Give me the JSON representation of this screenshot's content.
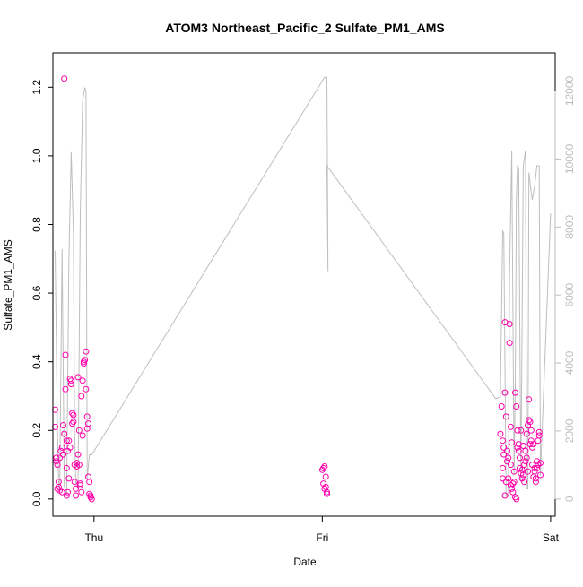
{
  "chart_data": {
    "type": "scatter",
    "title": "ATOM3 Northeast_Pacific_2 Sulfate_PM1_AMS",
    "xlabel": "Date",
    "ylabel": "Sulfate_PM1_AMS",
    "x_ticks": [
      "Thu",
      "Fri",
      "Sat"
    ],
    "xlim": [
      -0.18,
      2.02
    ],
    "ylim": [
      -0.05,
      1.3
    ],
    "y_ticks": [
      "0.0",
      "0.2",
      "0.4",
      "0.6",
      "0.8",
      "1.0",
      "1.2"
    ],
    "y_tick_values": [
      0.0,
      0.2,
      0.4,
      0.6,
      0.8,
      1.0,
      1.2
    ],
    "y2_ticks": [
      "0",
      "2000",
      "4000",
      "6000",
      "8000",
      "10000",
      "12000"
    ],
    "y2_tick_values": [
      0,
      2000,
      4000,
      6000,
      8000,
      10000,
      12000
    ],
    "y2lim": [
      -505,
      13120
    ],
    "grid": false,
    "legend": "none",
    "series": [
      {
        "kind": "points",
        "color": "#ff00aa",
        "points": [
          [
            -0.17,
            0.21
          ],
          [
            -0.17,
            0.26
          ],
          [
            -0.165,
            0.11
          ],
          [
            -0.165,
            0.12
          ],
          [
            -0.16,
            0.1
          ],
          [
            -0.16,
            0.03
          ],
          [
            -0.155,
            0.05
          ],
          [
            -0.155,
            0.035
          ],
          [
            -0.15,
            0.025
          ],
          [
            -0.15,
            0.12
          ],
          [
            -0.145,
            0.14
          ],
          [
            -0.14,
            0.15
          ],
          [
            -0.14,
            0.02
          ],
          [
            -0.135,
            0.215
          ],
          [
            -0.135,
            0.13
          ],
          [
            -0.13,
            1.225
          ],
          [
            -0.13,
            0.19
          ],
          [
            -0.125,
            0.42
          ],
          [
            -0.125,
            0.32
          ],
          [
            -0.12,
            0.17
          ],
          [
            -0.12,
            0.01
          ],
          [
            -0.12,
            0.09
          ],
          [
            -0.115,
            0.14
          ],
          [
            -0.115,
            0.02
          ],
          [
            -0.11,
            0.17
          ],
          [
            -0.11,
            0.06
          ],
          [
            -0.105,
            0.15
          ],
          [
            -0.105,
            0.35
          ],
          [
            -0.1,
            0.345
          ],
          [
            -0.1,
            0.335
          ],
          [
            -0.095,
            0.25
          ],
          [
            -0.095,
            0.22
          ],
          [
            -0.09,
            0.245
          ],
          [
            -0.09,
            0.225
          ],
          [
            -0.085,
            0.05
          ],
          [
            -0.085,
            0.1
          ],
          [
            -0.08,
            0.03
          ],
          [
            -0.08,
            0.01
          ],
          [
            -0.075,
            0.105
          ],
          [
            -0.075,
            0.095
          ],
          [
            -0.07,
            0.355
          ],
          [
            -0.07,
            0.13
          ],
          [
            -0.065,
            0.2
          ],
          [
            -0.065,
            0.1
          ],
          [
            -0.06,
            0.045
          ],
          [
            -0.06,
            0.04
          ],
          [
            -0.055,
            0.02
          ],
          [
            -0.055,
            0.3
          ],
          [
            -0.05,
            0.185
          ],
          [
            -0.05,
            0.345
          ],
          [
            -0.045,
            0.4
          ],
          [
            -0.045,
            0.395
          ],
          [
            -0.04,
            0.405
          ],
          [
            -0.035,
            0.43
          ],
          [
            -0.035,
            0.32
          ],
          [
            -0.03,
            0.24
          ],
          [
            -0.03,
            0.205
          ],
          [
            -0.025,
            0.22
          ],
          [
            -0.025,
            0.065
          ],
          [
            -0.02,
            0.05
          ],
          [
            -0.02,
            0.015
          ],
          [
            -0.015,
            0.01
          ],
          [
            -0.015,
            0.005
          ],
          [
            -0.01,
            0.0
          ],
          [
            1.0,
            0.085
          ],
          [
            1.005,
            0.09
          ],
          [
            1.005,
            0.045
          ],
          [
            1.01,
            0.03
          ],
          [
            1.01,
            0.095
          ],
          [
            1.015,
            0.065
          ],
          [
            1.015,
            0.035
          ],
          [
            1.02,
            0.015
          ],
          [
            1.02,
            0.02
          ],
          [
            1.78,
            0.19
          ],
          [
            1.785,
            0.27
          ],
          [
            1.79,
            0.06
          ],
          [
            1.79,
            0.09
          ],
          [
            1.79,
            0.17
          ],
          [
            1.795,
            0.15
          ],
          [
            1.795,
            0.13
          ],
          [
            1.8,
            0.515
          ],
          [
            1.8,
            0.31
          ],
          [
            1.8,
            0.01
          ],
          [
            1.805,
            0.05
          ],
          [
            1.805,
            0.24
          ],
          [
            1.81,
            0.14
          ],
          [
            1.81,
            0.11
          ],
          [
            1.815,
            0.12
          ],
          [
            1.815,
            0.06
          ],
          [
            1.82,
            0.51
          ],
          [
            1.82,
            0.455
          ],
          [
            1.825,
            0.21
          ],
          [
            1.825,
            0.04
          ],
          [
            1.825,
            0.1
          ],
          [
            1.83,
            0.165
          ],
          [
            1.83,
            0.03
          ],
          [
            1.835,
            0.02
          ],
          [
            1.835,
            0.045
          ],
          [
            1.84,
            0.08
          ],
          [
            1.84,
            0.05
          ],
          [
            1.845,
            0.31
          ],
          [
            1.845,
            0.005
          ],
          [
            1.85,
            0.0
          ],
          [
            1.85,
            0.27
          ],
          [
            1.855,
            0.2
          ],
          [
            1.855,
            0.15
          ],
          [
            1.86,
            0.14
          ],
          [
            1.86,
            0.16
          ],
          [
            1.865,
            0.12
          ],
          [
            1.865,
            0.09
          ],
          [
            1.87,
            0.2
          ],
          [
            1.87,
            0.075
          ],
          [
            1.875,
            0.085
          ],
          [
            1.875,
            0.06
          ],
          [
            1.88,
            0.155
          ],
          [
            1.88,
            0.07
          ],
          [
            1.885,
            0.1
          ],
          [
            1.885,
            0.05
          ],
          [
            1.89,
            0.14
          ],
          [
            1.89,
            0.11
          ],
          [
            1.895,
            0.19
          ],
          [
            1.895,
            0.12
          ],
          [
            1.9,
            0.215
          ],
          [
            1.9,
            0.08
          ],
          [
            1.905,
            0.29
          ],
          [
            1.905,
            0.23
          ],
          [
            1.91,
            0.225
          ],
          [
            1.91,
            0.16
          ],
          [
            1.915,
            0.17
          ],
          [
            1.915,
            0.2
          ],
          [
            1.92,
            0.1
          ],
          [
            1.92,
            0.15
          ],
          [
            1.925,
            0.065
          ],
          [
            1.925,
            0.16
          ],
          [
            1.93,
            0.09
          ],
          [
            1.93,
            0.08
          ],
          [
            1.935,
            0.06
          ],
          [
            1.935,
            0.05
          ],
          [
            1.94,
            0.11
          ],
          [
            1.94,
            0.09
          ],
          [
            1.945,
            0.1
          ],
          [
            1.945,
            0.17
          ],
          [
            1.95,
            0.195
          ],
          [
            1.95,
            0.185
          ],
          [
            1.955,
            0.07
          ],
          [
            1.955,
            0.105
          ]
        ]
      },
      {
        "kind": "line",
        "color": "#bebebe",
        "axis": "right",
        "points": [
          [
            -0.17,
            7300
          ],
          [
            -0.16,
            2000
          ],
          [
            -0.155,
            500
          ],
          [
            -0.15,
            300
          ],
          [
            -0.14,
            7350
          ],
          [
            -0.13,
            400
          ],
          [
            -0.12,
            100
          ],
          [
            -0.11,
            7000
          ],
          [
            -0.1,
            10200
          ],
          [
            -0.09,
            7800
          ],
          [
            -0.085,
            2000
          ],
          [
            -0.08,
            500
          ],
          [
            -0.07,
            300
          ],
          [
            -0.06,
            8400
          ],
          [
            -0.05,
            11700
          ],
          [
            -0.04,
            12100
          ],
          [
            -0.035,
            12000
          ],
          [
            -0.03,
            600
          ],
          [
            -0.02,
            1300
          ],
          [
            -0.01,
            1300
          ],
          [
            1.01,
            12400
          ],
          [
            1.02,
            12400
          ],
          [
            1.025,
            6700
          ],
          [
            1.02,
            9800
          ],
          [
            1.76,
            2950
          ],
          [
            1.78,
            3000
          ],
          [
            1.79,
            7900
          ],
          [
            1.795,
            7800
          ],
          [
            1.805,
            100
          ],
          [
            1.815,
            100
          ],
          [
            1.82,
            6500
          ],
          [
            1.83,
            10250
          ],
          [
            1.84,
            700
          ],
          [
            1.845,
            3300
          ],
          [
            1.85,
            8800
          ],
          [
            1.855,
            9800
          ],
          [
            1.86,
            9750
          ],
          [
            1.87,
            500
          ],
          [
            1.88,
            9800
          ],
          [
            1.89,
            10250
          ],
          [
            1.895,
            300
          ],
          [
            1.9,
            300
          ],
          [
            1.905,
            9600
          ],
          [
            1.915,
            9000
          ],
          [
            1.92,
            8800
          ],
          [
            1.93,
            9200
          ],
          [
            1.94,
            9800
          ],
          [
            1.95,
            9800
          ],
          [
            1.955,
            700
          ],
          [
            2.0,
            8400
          ]
        ]
      }
    ]
  }
}
